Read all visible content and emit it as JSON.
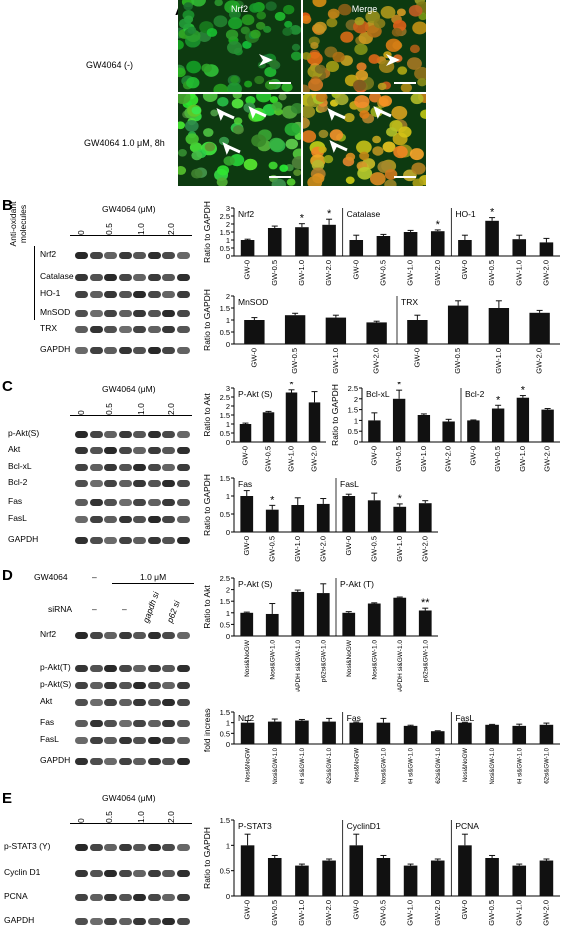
{
  "panel_labels": {
    "A": "A",
    "B": "B",
    "C": "C",
    "D": "D",
    "E": "E"
  },
  "panelA": {
    "row_labels": [
      "GW4064 (-)",
      "GW4064 1.0  μM, 8h"
    ],
    "col_titles": [
      "Nrf2",
      "Merge"
    ]
  },
  "dose_header": "GW4064 (μM)",
  "doses": [
    "0",
    "0.5",
    "1.0",
    "2.0"
  ],
  "panelB": {
    "side_label": "Anti-oxidant molecules",
    "blots": [
      "Nrf2",
      "Catalase",
      "HO-1",
      "MnSOD",
      "TRX",
      "GAPDH"
    ]
  },
  "panelC": {
    "blots": [
      "p-Akt(S)",
      "Akt",
      "Bcl-xL",
      "Bcl-2",
      "Fas",
      "FasL",
      "GAPDH"
    ]
  },
  "panelD": {
    "gw_label": "GW4064",
    "gw_values": [
      "–",
      "1.0 μM"
    ],
    "sirna_label": "siRNA",
    "sirna_values": [
      "–",
      "–",
      "gapdh si",
      "p62 si"
    ],
    "blots": [
      "Nrf2",
      "p-Akt(T)",
      "p-Akt(S)",
      "Akt",
      "Fas",
      "FasL",
      "GAPDH"
    ]
  },
  "panelE": {
    "blots": [
      "p-STAT3 (Y)",
      "Cyclin D1",
      "PCNA",
      "GAPDH"
    ]
  },
  "chart_data": [
    {
      "type": "bar",
      "ylabel": "Ratio to GAPDH",
      "ylim": [
        0,
        3
      ],
      "yticks": [
        0,
        0.5,
        1,
        1.5,
        2,
        2.5,
        3
      ],
      "groups": [
        {
          "title": "Nrf2",
          "categories": [
            "GW-0",
            "GW-0.5",
            "GW-1.0",
            "GW-2.0"
          ],
          "values": [
            1.0,
            1.75,
            1.8,
            1.95
          ],
          "errors": [
            0.05,
            0.12,
            0.22,
            0.35
          ],
          "sig": [
            "",
            "",
            "*",
            "*"
          ]
        },
        {
          "title": "Catalase",
          "categories": [
            "GW-0",
            "GW-0.5",
            "GW-1.0",
            "GW-2.0"
          ],
          "values": [
            1.0,
            1.25,
            1.5,
            1.55
          ],
          "errors": [
            0.3,
            0.1,
            0.1,
            0.08
          ],
          "sig": [
            "",
            "",
            "",
            "*"
          ]
        },
        {
          "title": "HO-1",
          "categories": [
            "GW-0",
            "GW-0.5",
            "GW-1.0",
            "GW-2.0"
          ],
          "values": [
            1.0,
            2.2,
            1.05,
            0.85
          ],
          "errors": [
            0.3,
            0.2,
            0.25,
            0.25
          ],
          "sig": [
            "",
            "*",
            "",
            ""
          ]
        }
      ]
    },
    {
      "type": "bar",
      "ylabel": "Ratio to GAPDH",
      "ylim": [
        0,
        2
      ],
      "yticks": [
        0,
        0.5,
        1,
        1.5,
        2
      ],
      "groups": [
        {
          "title": "MnSOD",
          "categories": [
            "GW-0",
            "GW-0.5",
            "GW-1.0",
            "GW-2.0"
          ],
          "values": [
            1.0,
            1.2,
            1.1,
            0.9
          ],
          "errors": [
            0.1,
            0.08,
            0.1,
            0.05
          ],
          "sig": [
            "",
            "",
            "",
            ""
          ]
        },
        {
          "title": "TRX",
          "categories": [
            "GW-0",
            "GW-0.5",
            "GW-1.0",
            "GW-2.0"
          ],
          "values": [
            1.0,
            1.6,
            1.5,
            1.3
          ],
          "errors": [
            0.2,
            0.2,
            0.3,
            0.1
          ],
          "sig": [
            "",
            "",
            "",
            ""
          ]
        }
      ]
    },
    {
      "type": "bar",
      "ylabel": "Ratio to Akt",
      "ylim": [
        0,
        3
      ],
      "yticks": [
        0,
        0.5,
        1,
        1.5,
        2,
        2.5,
        3
      ],
      "groups": [
        {
          "title": "P-Akt (S)",
          "categories": [
            "GW-0",
            "GW-0.5",
            "GW-1.0",
            "GW-2.0"
          ],
          "values": [
            1.0,
            1.65,
            2.75,
            2.2
          ],
          "errors": [
            0.05,
            0.05,
            0.15,
            0.6
          ],
          "sig": [
            "",
            "",
            "*",
            ""
          ]
        }
      ]
    },
    {
      "type": "bar",
      "ylabel": "Ratio to GAPDH",
      "ylim": [
        0,
        2.5
      ],
      "yticks": [
        0,
        0.5,
        1,
        1.5,
        2,
        2.5
      ],
      "groups": [
        {
          "title": "Bcl-xL",
          "categories": [
            "GW-0",
            "GW-0.5",
            "GW-1.0",
            "GW-2.0"
          ],
          "values": [
            1.0,
            2.0,
            1.25,
            0.95
          ],
          "errors": [
            0.35,
            0.4,
            0.05,
            0.1
          ],
          "sig": [
            "",
            "*",
            "",
            ""
          ]
        },
        {
          "title": "Bcl-2",
          "categories": [
            "GW-0",
            "GW-0.5",
            "GW-1.0",
            "GW-2.0"
          ],
          "values": [
            1.0,
            1.55,
            2.05,
            1.5
          ],
          "errors": [
            0.02,
            0.15,
            0.1,
            0.05
          ],
          "sig": [
            "",
            "*",
            "*",
            ""
          ]
        }
      ]
    },
    {
      "type": "bar",
      "ylabel": "Ratio to GAPDH",
      "ylim": [
        0,
        1.5
      ],
      "yticks": [
        0,
        0.5,
        1,
        1.5
      ],
      "groups": [
        {
          "title": "Fas",
          "categories": [
            "GW-0",
            "GW-0.5",
            "GW-1.0",
            "GW-2.0"
          ],
          "values": [
            1.0,
            0.62,
            0.75,
            0.78
          ],
          "errors": [
            0.15,
            0.12,
            0.2,
            0.15
          ],
          "sig": [
            "",
            "*",
            "",
            ""
          ]
        },
        {
          "title": "FasL",
          "categories": [
            "GW-0",
            "GW-0.5",
            "GW-1.0",
            "GW-2.0"
          ],
          "values": [
            1.0,
            0.88,
            0.7,
            0.8
          ],
          "errors": [
            0.05,
            0.2,
            0.08,
            0.07
          ],
          "sig": [
            "",
            "",
            "*",
            ""
          ]
        }
      ]
    },
    {
      "type": "bar",
      "ylabel": "Ratio to Akt",
      "ylim": [
        0,
        2.5
      ],
      "yticks": [
        0,
        0.5,
        1,
        1.5,
        2,
        2.5
      ],
      "groups": [
        {
          "title": "P-Akt (S)",
          "categories": [
            "Nosi&NoGW",
            "Nosi&GW-1.0",
            "GAPDH si&GW-1.0",
            "p62si&GW-1.0"
          ],
          "values": [
            1.0,
            0.95,
            1.9,
            1.85
          ],
          "errors": [
            0.03,
            0.45,
            0.08,
            0.4
          ],
          "sig": [
            "",
            "",
            "",
            ""
          ]
        },
        {
          "title": "P-Akt (T)",
          "categories": [
            "Nosi&NoGW",
            "Nosi&GW-1.0",
            "GAPDH si&GW-1.0",
            "p62si&GW-1.0"
          ],
          "values": [
            1.0,
            1.4,
            1.65,
            1.1
          ],
          "errors": [
            0.05,
            0.03,
            0.03,
            0.1
          ],
          "sig": [
            "",
            "",
            "",
            "**"
          ]
        }
      ]
    },
    {
      "type": "bar",
      "ylabel": "fold increase",
      "ylim": [
        0,
        1.5
      ],
      "yticks": [
        0,
        0.5,
        1,
        1.5
      ],
      "groups": [
        {
          "title": "Nrf2",
          "categories": [
            "Nosi&NoGW",
            "Nosi&GW-1.0",
            "GAPDH si&GW-1.0",
            "p62si&GW-1.0"
          ],
          "values": [
            1.0,
            1.05,
            1.1,
            1.05
          ],
          "errors": [
            0.1,
            0.12,
            0.05,
            0.15
          ],
          "sig": [
            "",
            "",
            "",
            ""
          ]
        },
        {
          "title": "Fas",
          "categories": [
            "Nosi&NoGW",
            "Nosi&GW-1.0",
            "GAPDH si&GW-1.0",
            "p62si&GW-1.0"
          ],
          "values": [
            1.0,
            1.0,
            0.85,
            0.6
          ],
          "errors": [
            0.03,
            0.2,
            0.03,
            0.02
          ],
          "sig": [
            "",
            "",
            "",
            ""
          ]
        },
        {
          "title": "FasL",
          "categories": [
            "Nosi&NoGW",
            "Nosi&GW-1.0",
            "GAPDH si&GW-1.0",
            "p62si&GW-1.0"
          ],
          "values": [
            1.0,
            0.9,
            0.85,
            0.9
          ],
          "errors": [
            0.02,
            0.02,
            0.08,
            0.08
          ],
          "sig": [
            "",
            "",
            "",
            ""
          ]
        }
      ]
    },
    {
      "type": "bar",
      "ylabel": "Ratio to GAPDH",
      "ylim": [
        0,
        1.5
      ],
      "yticks": [
        0,
        0.5,
        1,
        1.5
      ],
      "groups": [
        {
          "title": "P-STAT3",
          "categories": [
            "GW-0",
            "GW-0.5",
            "GW-1.0",
            "GW-2.0"
          ],
          "values": [
            1.0,
            0.75,
            0.6,
            0.7
          ],
          "errors": [
            0.22,
            0.05,
            0.03,
            0.03
          ],
          "sig": [
            "",
            "",
            "",
            ""
          ]
        },
        {
          "title": "CyclinD1",
          "categories": [
            "GW-0",
            "GW-0.5",
            "GW-1.0",
            "GW-2.0"
          ],
          "values": [
            1.0,
            0.75,
            0.6,
            0.7
          ],
          "errors": [
            0.22,
            0.05,
            0.03,
            0.03
          ],
          "sig": [
            "",
            "",
            "",
            ""
          ]
        },
        {
          "title": "PCNA",
          "categories": [
            "GW-0",
            "GW-0.5",
            "GW-1.0",
            "GW-2.0"
          ],
          "values": [
            1.0,
            0.75,
            0.6,
            0.7
          ],
          "errors": [
            0.22,
            0.05,
            0.03,
            0.03
          ],
          "sig": [
            "",
            "",
            "",
            ""
          ]
        }
      ]
    }
  ]
}
